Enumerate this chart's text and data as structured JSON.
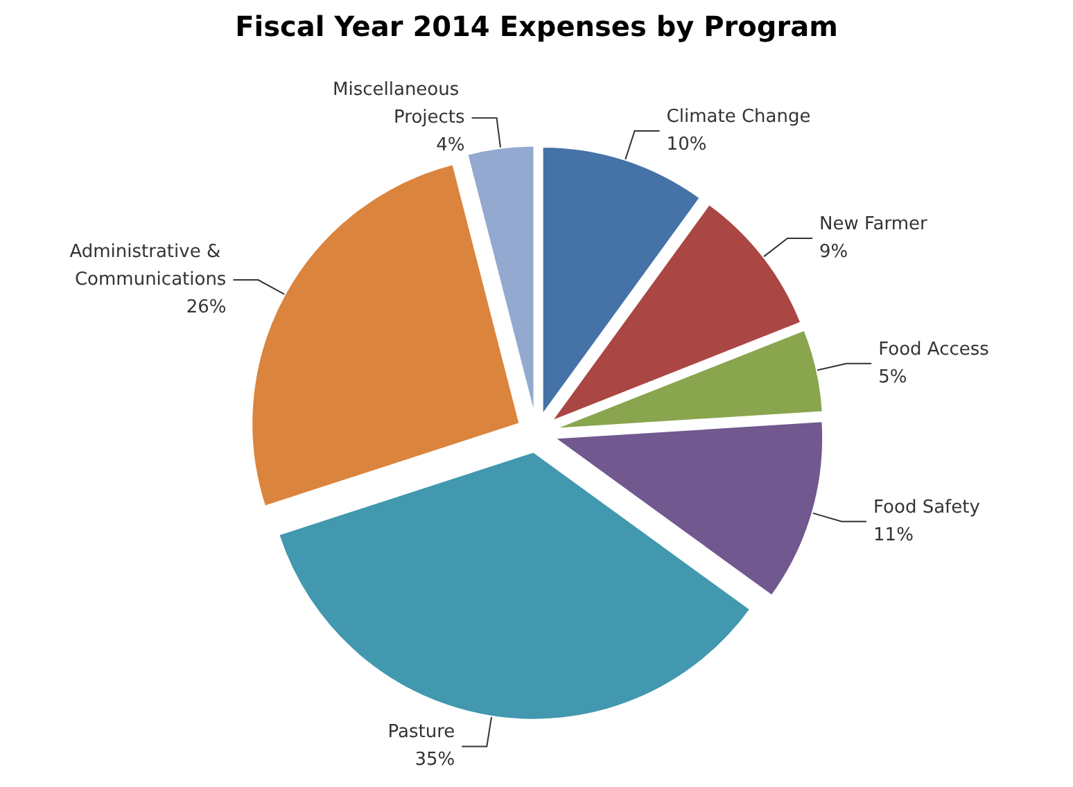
{
  "chart_data": {
    "type": "pie",
    "title": "Fiscal Year 2014 Expenses by Program",
    "categories": [
      "Climate Change",
      "New Farmer",
      "Food Access",
      "Food Safety",
      "Pasture",
      "Administrative & Communications",
      "Miscellaneous Projects"
    ],
    "values": [
      10,
      9,
      5,
      11,
      35,
      26,
      4
    ],
    "value_labels": [
      "10%",
      "9%",
      "5%",
      "11%",
      "35%",
      "26%",
      "4%"
    ],
    "colors": [
      "#4572a7",
      "#aa4643",
      "#89a54e",
      "#71588f",
      "#4198af",
      "#db843d",
      "#93a9cf"
    ]
  }
}
